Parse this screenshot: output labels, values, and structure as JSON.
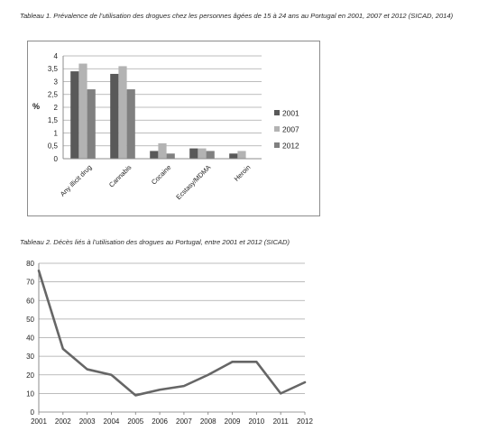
{
  "captions": {
    "table1": "Tableau 1. Prévalence de l’utilisation des drogues chez les personnes âgées de 15 à 24 ans au Portugal en 2001, 2007 et 2012 (SICAD, 2014)",
    "table2": "Tableau 2. Décès liés à l’utilisation des drogues au Portugal, entre 2001 et 2012 (SICAD)"
  },
  "chart_data": [
    {
      "type": "bar",
      "title": "",
      "ylabel": "%",
      "xlabel": "",
      "ylim": [
        0,
        4
      ],
      "yticks": [
        0,
        0.5,
        1,
        1.5,
        2,
        2.5,
        3,
        3.5,
        4
      ],
      "grid": true,
      "legend": "right",
      "categories": [
        "Any illicit drug",
        "Cannabis",
        "Cocaine",
        "Ecstasy/MDMA",
        "Heroin"
      ],
      "series": [
        {
          "name": "2001",
          "color": "#595959",
          "values": [
            3.4,
            3.3,
            0.3,
            0.4,
            0.2
          ]
        },
        {
          "name": "2007",
          "color": "#b3b3b3",
          "values": [
            3.7,
            3.6,
            0.6,
            0.4,
            0.3
          ]
        },
        {
          "name": "2012",
          "color": "#808080",
          "values": [
            2.7,
            2.7,
            0.2,
            0.3,
            0
          ]
        }
      ]
    },
    {
      "type": "line",
      "title": "",
      "xlabel": "",
      "ylabel": "",
      "ylim": [
        0,
        80
      ],
      "yticks": [
        0,
        10,
        20,
        30,
        40,
        50,
        60,
        70,
        80
      ],
      "grid": true,
      "color": "#666666",
      "x": [
        "2001",
        "2002",
        "2003",
        "2004",
        "2005",
        "2006",
        "2007",
        "2008",
        "2009",
        "2010",
        "2011",
        "2012"
      ],
      "series": [
        {
          "values": [
            76,
            34,
            23,
            20,
            9,
            12,
            14,
            20,
            27,
            27,
            10,
            16
          ]
        }
      ]
    }
  ]
}
